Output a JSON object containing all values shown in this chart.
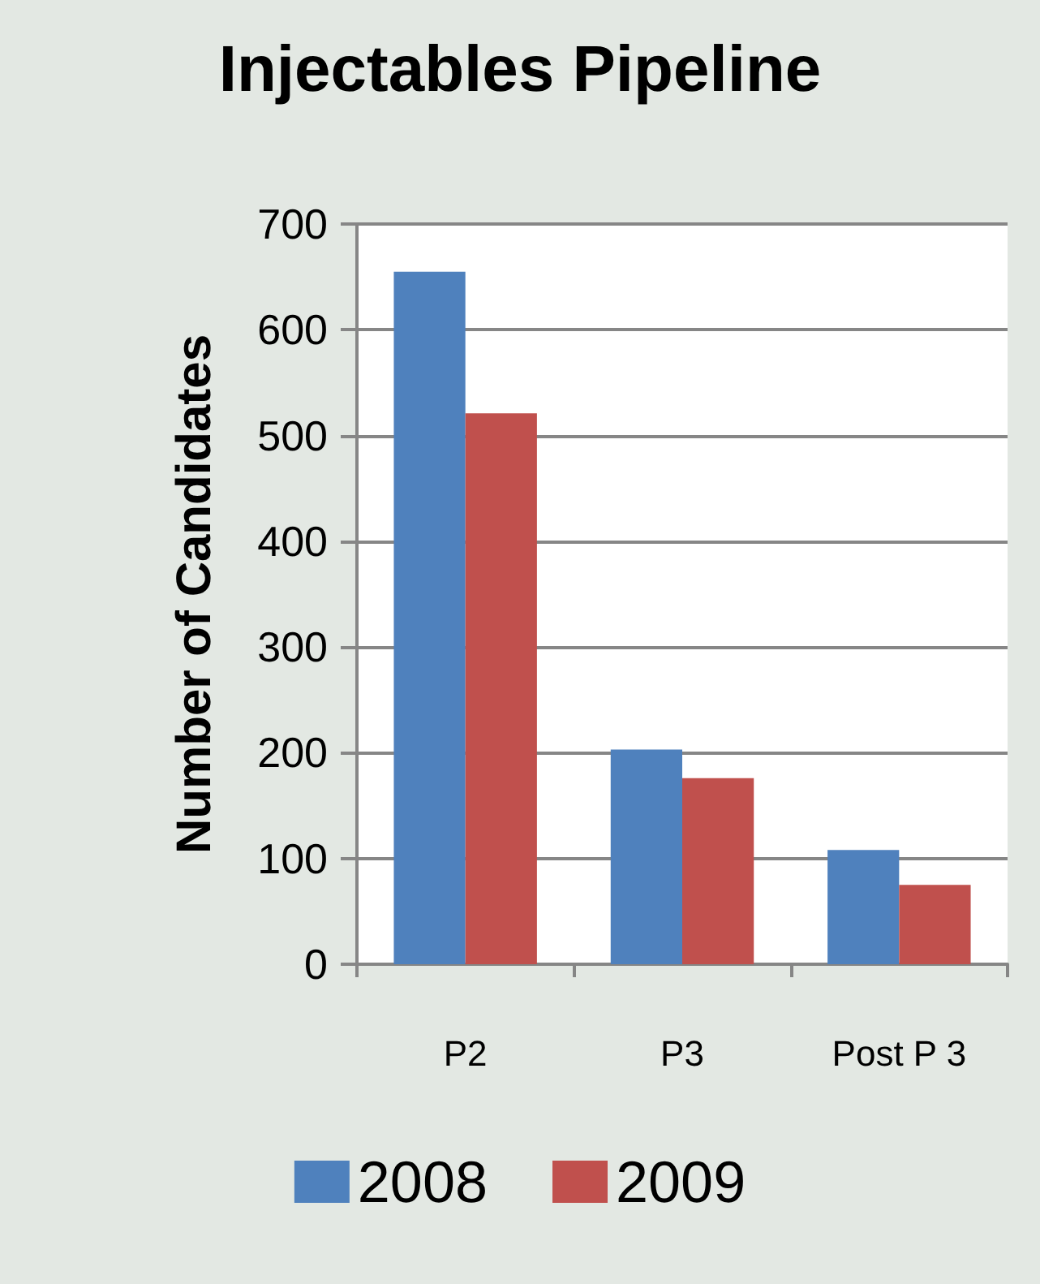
{
  "chart_data": {
    "type": "bar",
    "title": "Injectables Pipeline",
    "ylabel": "Number of Candidates",
    "categories": [
      "P2",
      "P3",
      "Post P 3"
    ],
    "series": [
      {
        "name": "2008",
        "color": "#4f81bd",
        "values": [
          655,
          203,
          108
        ]
      },
      {
        "name": "2009",
        "color": "#c0504d",
        "values": [
          521,
          176,
          75
        ]
      }
    ],
    "ylim": [
      0,
      700
    ],
    "yticks": [
      0,
      100,
      200,
      300,
      400,
      500,
      600,
      700
    ],
    "grid": "y",
    "legend": "bottom"
  }
}
